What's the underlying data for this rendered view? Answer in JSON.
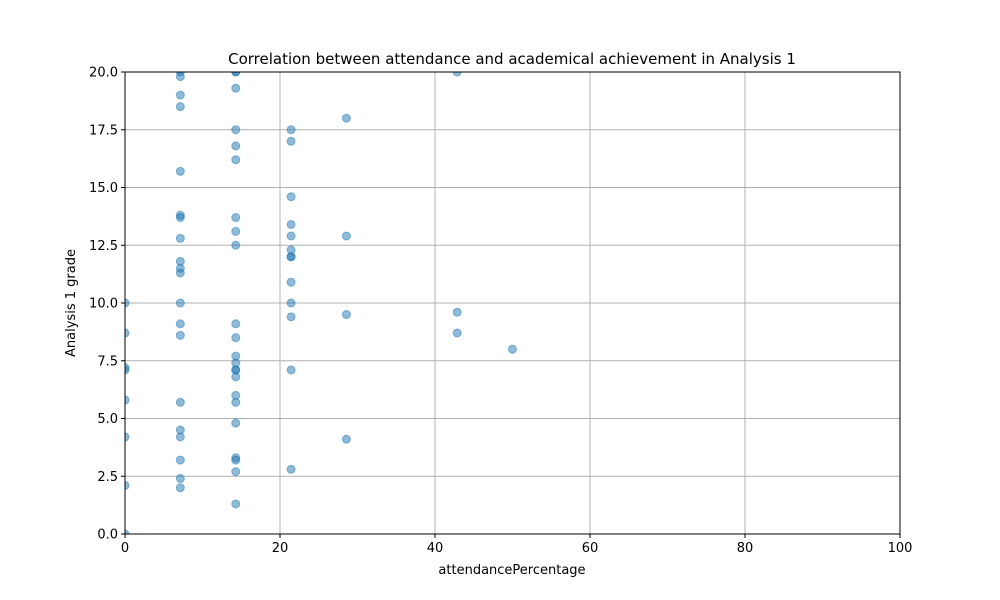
{
  "chart_data": {
    "type": "scatter",
    "title": "Correlation between attendance and academical achievement in Analysis 1",
    "xlabel": "attendancePercentage",
    "ylabel": "Analysis 1 grade",
    "xlim": [
      0,
      100
    ],
    "ylim": [
      0,
      20
    ],
    "xticks": [
      0,
      20,
      40,
      60,
      80,
      100
    ],
    "xtick_labels": [
      "0",
      "20",
      "40",
      "60",
      "80",
      "100"
    ],
    "yticks": [
      0,
      2.5,
      5,
      7.5,
      10,
      12.5,
      15,
      17.5,
      20
    ],
    "ytick_labels": [
      "0.0",
      "2.5",
      "5.0",
      "7.5",
      "10.0",
      "12.5",
      "15.0",
      "17.5",
      "20.0"
    ],
    "grid": true,
    "color": "#1f77b4",
    "alpha": 0.5,
    "points": [
      [
        0,
        10.0
      ],
      [
        0,
        8.7
      ],
      [
        0,
        7.2
      ],
      [
        0,
        7.1
      ],
      [
        0,
        5.8
      ],
      [
        0,
        4.2
      ],
      [
        0,
        2.1
      ],
      [
        0,
        0.0
      ],
      [
        7.14,
        20.0
      ],
      [
        7.14,
        19.8
      ],
      [
        7.14,
        19.0
      ],
      [
        7.14,
        18.5
      ],
      [
        7.14,
        15.7
      ],
      [
        7.14,
        13.8
      ],
      [
        7.14,
        13.7
      ],
      [
        7.14,
        12.8
      ],
      [
        7.14,
        11.8
      ],
      [
        7.14,
        11.5
      ],
      [
        7.14,
        11.3
      ],
      [
        7.14,
        10.0
      ],
      [
        7.14,
        9.1
      ],
      [
        7.14,
        8.6
      ],
      [
        7.14,
        5.7
      ],
      [
        7.14,
        4.5
      ],
      [
        7.14,
        4.2
      ],
      [
        7.14,
        3.2
      ],
      [
        7.14,
        2.4
      ],
      [
        7.14,
        2.0
      ],
      [
        14.29,
        20.0
      ],
      [
        14.29,
        20.0
      ],
      [
        14.29,
        19.3
      ],
      [
        14.29,
        17.5
      ],
      [
        14.29,
        16.8
      ],
      [
        14.29,
        16.2
      ],
      [
        14.29,
        13.7
      ],
      [
        14.29,
        13.1
      ],
      [
        14.29,
        12.5
      ],
      [
        14.29,
        9.1
      ],
      [
        14.29,
        8.5
      ],
      [
        14.29,
        7.7
      ],
      [
        14.29,
        7.4
      ],
      [
        14.29,
        7.1
      ],
      [
        14.29,
        7.1
      ],
      [
        14.29,
        6.8
      ],
      [
        14.29,
        6.0
      ],
      [
        14.29,
        5.7
      ],
      [
        14.29,
        4.8
      ],
      [
        14.29,
        3.3
      ],
      [
        14.29,
        3.2
      ],
      [
        14.29,
        2.7
      ],
      [
        14.29,
        1.3
      ],
      [
        21.43,
        17.5
      ],
      [
        21.43,
        17.0
      ],
      [
        21.43,
        14.6
      ],
      [
        21.43,
        13.4
      ],
      [
        21.43,
        12.9
      ],
      [
        21.43,
        12.3
      ],
      [
        21.43,
        12.0
      ],
      [
        21.43,
        12.0
      ],
      [
        21.43,
        10.9
      ],
      [
        21.43,
        10.0
      ],
      [
        21.43,
        9.4
      ],
      [
        21.43,
        7.1
      ],
      [
        21.43,
        2.8
      ],
      [
        28.57,
        18.0
      ],
      [
        28.57,
        12.9
      ],
      [
        28.57,
        9.5
      ],
      [
        28.57,
        4.1
      ],
      [
        42.86,
        20.0
      ],
      [
        42.86,
        9.6
      ],
      [
        42.86,
        8.7
      ],
      [
        50.0,
        8.0
      ]
    ]
  }
}
